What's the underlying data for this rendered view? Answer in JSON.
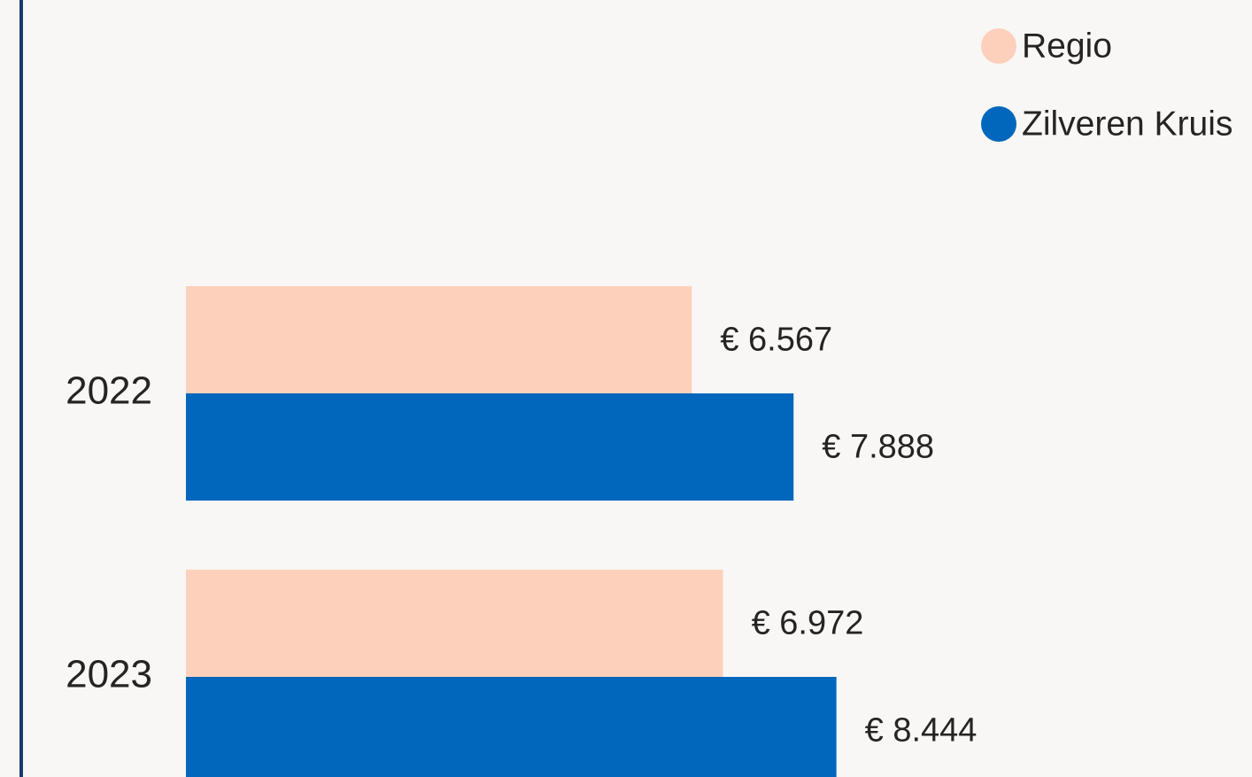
{
  "chart_data": {
    "type": "hbar",
    "categories": [
      "2022",
      "2023"
    ],
    "series": [
      {
        "name": "Regio",
        "color": "#fdd0bb",
        "values": [
          6567,
          6972
        ],
        "value_labels": [
          "€ 6.567",
          "€ 6.972"
        ]
      },
      {
        "name": "Zilveren Kruis",
        "color": "#0067bc",
        "values": [
          7888,
          8444
        ],
        "value_labels": [
          "€ 7.888",
          "€ 8.444"
        ]
      }
    ]
  }
}
